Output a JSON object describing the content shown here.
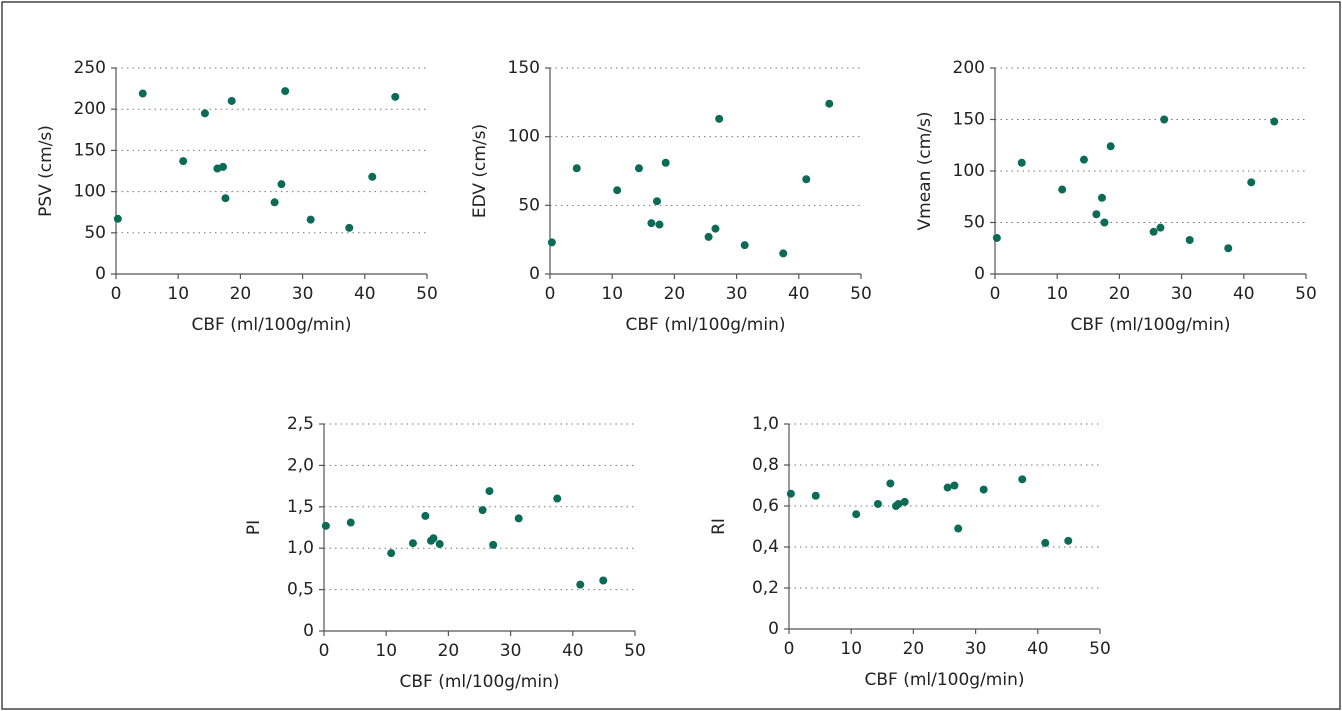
{
  "chart_data": [
    {
      "type": "scatter",
      "x_label": "CBF (ml/100g/min)",
      "y_label": "PSV (cm/s)",
      "color": "#0b6b57",
      "grid": true,
      "x": [
        0.3,
        4.3,
        10.8,
        14.3,
        16.3,
        17.2,
        17.6,
        18.6,
        25.5,
        26.6,
        27.2,
        31.3,
        37.5,
        41.2,
        44.9
      ],
      "y": [
        67,
        219,
        137,
        195,
        128,
        130,
        92,
        210,
        87,
        109,
        222,
        66,
        56,
        118,
        215
      ],
      "xlim": [
        0,
        50
      ],
      "xticks": [
        0,
        10,
        20,
        30,
        40,
        50
      ],
      "ylim": [
        0,
        250
      ],
      "yticks": [
        0,
        50,
        100,
        150,
        200,
        250
      ]
    },
    {
      "type": "scatter",
      "x_label": "CBF (ml/100g/min)",
      "y_label": "EDV (cm/s)",
      "color": "#0b6b57",
      "grid": true,
      "x": [
        0.3,
        4.3,
        10.8,
        14.3,
        16.3,
        17.2,
        17.6,
        18.6,
        25.5,
        26.6,
        27.2,
        31.3,
        37.5,
        41.2,
        44.9
      ],
      "y": [
        23,
        77,
        61,
        77,
        37,
        53,
        36,
        81,
        27,
        33,
        113,
        21,
        15,
        69,
        124
      ],
      "xlim": [
        0,
        50
      ],
      "xticks": [
        0,
        10,
        20,
        30,
        40,
        50
      ],
      "ylim": [
        0,
        150
      ],
      "yticks": [
        0,
        50,
        100,
        150
      ]
    },
    {
      "type": "scatter",
      "x_label": "CBF (ml/100g/min)",
      "y_label": "Vmean (cm/s)",
      "color": "#0b6b57",
      "grid": true,
      "x": [
        0.3,
        4.3,
        10.8,
        14.3,
        16.3,
        17.2,
        17.6,
        18.6,
        25.5,
        26.6,
        27.2,
        31.3,
        37.5,
        41.2,
        44.9
      ],
      "y": [
        35,
        108,
        82,
        111,
        58,
        74,
        50,
        124,
        41,
        45,
        150,
        33,
        25,
        89,
        148
      ],
      "xlim": [
        0,
        50
      ],
      "xticks": [
        0,
        10,
        20,
        30,
        40,
        50
      ],
      "ylim": [
        0,
        200
      ],
      "yticks": [
        0,
        50,
        100,
        150,
        200
      ]
    },
    {
      "type": "scatter",
      "x_label": "CBF (ml/100g/min)",
      "y_label": "PI",
      "color": "#0b6b57",
      "grid": true,
      "x": [
        0.3,
        4.3,
        10.8,
        14.3,
        16.3,
        17.2,
        17.6,
        18.6,
        25.5,
        26.6,
        27.2,
        31.3,
        37.5,
        41.2,
        44.9
      ],
      "y": [
        1.27,
        1.31,
        0.94,
        1.06,
        1.39,
        1.09,
        1.12,
        1.05,
        1.46,
        1.69,
        1.04,
        1.36,
        1.6,
        0.56,
        0.61
      ],
      "xlim": [
        0,
        50
      ],
      "xticks": [
        0,
        10,
        20,
        30,
        40,
        50
      ],
      "ylim": [
        0,
        2.5
      ],
      "yticks": [
        0,
        {
          "value": 0.5,
          "label": "0,5"
        },
        {
          "value": 1,
          "label": "1,0"
        },
        {
          "value": 1.5,
          "label": "1,5"
        },
        {
          "value": 2,
          "label": "2,0"
        },
        {
          "value": 2.5,
          "label": "2,5"
        }
      ]
    },
    {
      "type": "scatter",
      "x_label": "CBF (ml/100g/min)",
      "y_label": "RI",
      "color": "#0b6b57",
      "grid": true,
      "x": [
        0.3,
        4.3,
        10.8,
        14.3,
        16.3,
        17.2,
        17.6,
        18.6,
        25.5,
        26.6,
        27.2,
        31.3,
        37.5,
        41.2,
        44.9
      ],
      "y": [
        0.66,
        0.65,
        0.56,
        0.61,
        0.71,
        0.6,
        0.61,
        0.62,
        0.69,
        0.7,
        0.49,
        0.68,
        0.73,
        0.42,
        0.43
      ],
      "xlim": [
        0,
        50
      ],
      "xticks": [
        0,
        10,
        20,
        30,
        40,
        50
      ],
      "ylim": [
        0,
        1
      ],
      "yticks": [
        0,
        {
          "value": 0.2,
          "label": "0,2"
        },
        {
          "value": 0.4,
          "label": "0,4"
        },
        {
          "value": 0.6,
          "label": "0,6"
        },
        {
          "value": 0.8,
          "label": "0,8"
        },
        {
          "value": 1,
          "label": "1,0"
        }
      ]
    }
  ]
}
